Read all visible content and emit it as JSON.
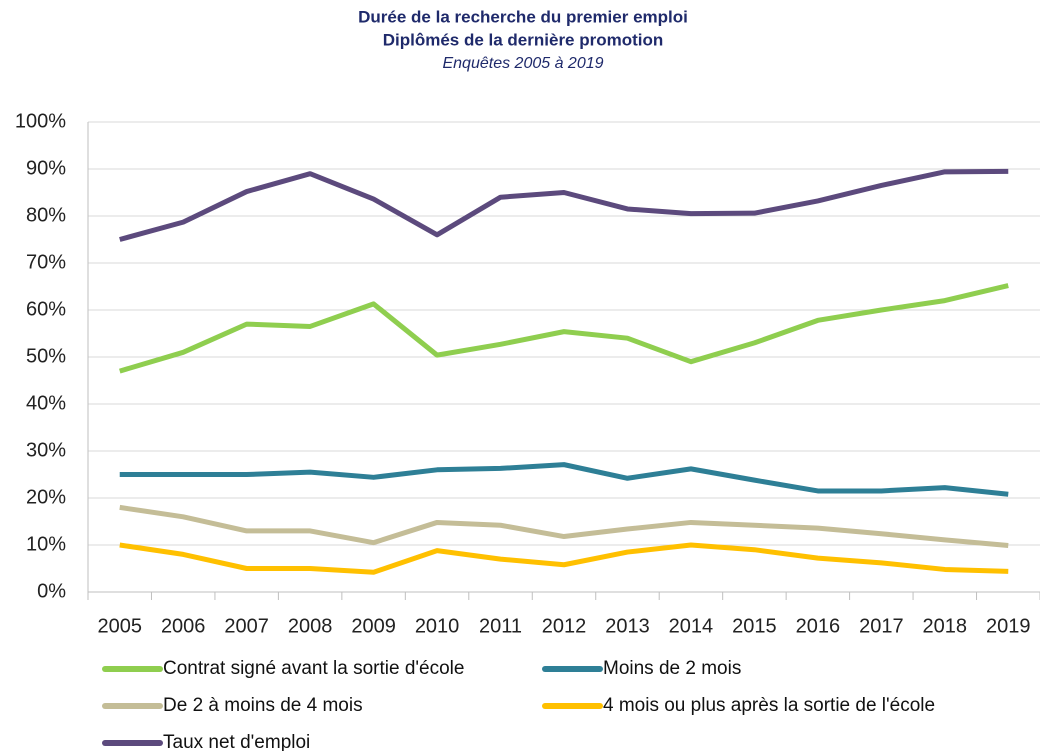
{
  "chart_data": {
    "type": "line",
    "title": [
      "Durée de la recherche du premier emploi",
      "Diplômés de la dernière promotion"
    ],
    "subtitle": "Enquêtes 2005 à 2019",
    "categories": [
      "2005",
      "2006",
      "2007",
      "2008",
      "2009",
      "2010",
      "2011",
      "2012",
      "2013",
      "2014",
      "2015",
      "2016",
      "2017",
      "2018",
      "2019"
    ],
    "series": [
      {
        "name": "Contrat signé avant la sortie d'école",
        "color": "#8fce4f",
        "values": [
          47,
          51,
          57,
          56.5,
          61.3,
          50.4,
          52.7,
          55.4,
          54,
          49,
          53,
          57.8,
          60,
          62,
          65.2
        ]
      },
      {
        "name": "Moins de 2 mois",
        "color": "#2e7f96",
        "values": [
          25,
          25,
          25,
          25.5,
          24.4,
          26,
          26.3,
          27.1,
          24.2,
          26.2,
          23.8,
          21.5,
          21.5,
          22.2,
          20.8
        ]
      },
      {
        "name": "De 2 à moins de 4 mois",
        "color": "#c4bd97",
        "values": [
          18,
          16,
          13,
          13,
          10.5,
          14.8,
          14.2,
          11.8,
          13.4,
          14.8,
          14.2,
          13.6,
          12.4,
          11.1,
          9.9
        ]
      },
      {
        "name": "4 mois ou plus après la sortie de l'école",
        "color": "#ffc000",
        "values": [
          10,
          8,
          5,
          5,
          4.2,
          8.8,
          7,
          5.8,
          8.5,
          10,
          9,
          7.2,
          6.2,
          4.8,
          4.4
        ]
      },
      {
        "name": "Taux net d'emploi",
        "color": "#5c4a7d",
        "values": [
          75,
          78.7,
          85.2,
          89,
          83.6,
          76,
          84,
          85,
          81.5,
          80.5,
          80.6,
          83.2,
          86.5,
          89.4,
          89.5
        ]
      }
    ],
    "ylim": [
      0,
      100
    ],
    "yticks": [
      {
        "value": 0,
        "label": "0%"
      },
      {
        "value": 10,
        "label": "10%"
      },
      {
        "value": 20,
        "label": "20%"
      },
      {
        "value": 30,
        "label": "30%"
      },
      {
        "value": 40,
        "label": "40%"
      },
      {
        "value": 50,
        "label": "50%"
      },
      {
        "value": 60,
        "label": "60%"
      },
      {
        "value": 70,
        "label": "70%"
      },
      {
        "value": 80,
        "label": "80%"
      },
      {
        "value": 90,
        "label": "90%"
      },
      {
        "value": 100,
        "label": "100%"
      }
    ],
    "grid": true,
    "legend": "bottom"
  }
}
